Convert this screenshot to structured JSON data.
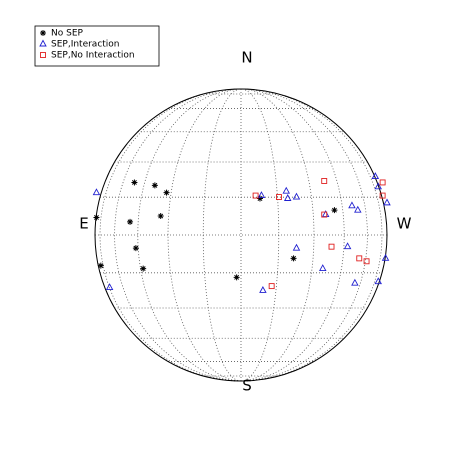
{
  "chart_data": {
    "type": "scatter",
    "direction_labels": {
      "north": "N",
      "south": "S",
      "east": "E",
      "west": "W"
    },
    "xlim": [
      -1,
      1
    ],
    "ylim": [
      -1,
      1
    ],
    "legend": "upper left",
    "series": [
      {
        "name": "No SEP",
        "color": "#000000",
        "marker": "asterisk",
        "x": [
          -0.73,
          -0.59,
          -0.51,
          -0.99,
          -0.76,
          -0.55,
          -0.72,
          -0.96,
          -0.67,
          -0.03,
          0.13,
          0.36,
          0.64
        ],
        "y": [
          0.36,
          0.34,
          0.29,
          0.12,
          0.09,
          0.13,
          -0.09,
          -0.21,
          -0.23,
          -0.29,
          0.25,
          -0.16,
          0.17
        ]
      },
      {
        "name": "SEP,Interaction",
        "color": "#2020d0",
        "marker": "triangle",
        "x": [
          -0.99,
          -0.9,
          0.31,
          0.38,
          0.32,
          0.14,
          0.92,
          0.94,
          1.0,
          0.76,
          0.8,
          0.58,
          0.73,
          0.38,
          0.99,
          0.56,
          0.78,
          0.94,
          0.15
        ],
        "y": [
          0.29,
          -0.36,
          0.3,
          0.26,
          0.25,
          0.27,
          0.4,
          0.33,
          0.22,
          0.2,
          0.17,
          0.14,
          -0.08,
          -0.09,
          -0.16,
          -0.23,
          -0.33,
          -0.32,
          -0.38
        ]
      },
      {
        "name": "SEP,No Interaction",
        "color": "#e02020",
        "marker": "square",
        "x": [
          0.1,
          0.26,
          0.57,
          0.97,
          0.97,
          0.57,
          0.62,
          0.81,
          0.86,
          0.21
        ],
        "y": [
          0.27,
          0.26,
          0.37,
          0.36,
          0.27,
          0.14,
          -0.08,
          -0.16,
          -0.18,
          -0.35
        ]
      }
    ]
  }
}
